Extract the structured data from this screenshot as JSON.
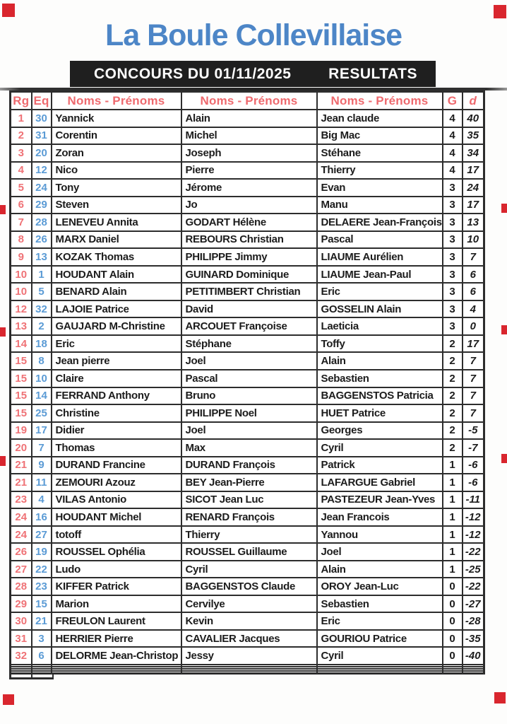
{
  "document": {
    "title": "La Boule Collevillaise",
    "banner": {
      "concours": "CONCOURS DU 01/11/2025",
      "resultats": "RESULTATS"
    }
  },
  "colors": {
    "title_blue": "#4d86c7",
    "header_pink": "#ee6a6e",
    "rank_pink": "#ef7276",
    "team_blue": "#5b9bd5",
    "banner_black": "#1f1f1f",
    "grid_dark": "#2d2d2d",
    "scan_mark_red": "#d9262e"
  },
  "table": {
    "headers": {
      "rank": "Rg",
      "team": "Eq",
      "names1": "Noms - Prénoms",
      "names2": "Noms - Prénoms",
      "names3": "Noms - Prénoms",
      "wins": "G",
      "diff": "d"
    },
    "rows": [
      {
        "rg": "1",
        "eq": "30",
        "n1": "Yannick",
        "n2": "Alain",
        "n3": "Jean claude",
        "g": "4",
        "d": "40"
      },
      {
        "rg": "2",
        "eq": "31",
        "n1": "Corentin",
        "n2": "Michel",
        "n3": "Big Mac",
        "g": "4",
        "d": "35"
      },
      {
        "rg": "3",
        "eq": "20",
        "n1": "Zoran",
        "n2": "Joseph",
        "n3": "Stéhane",
        "g": "4",
        "d": "34"
      },
      {
        "rg": "4",
        "eq": "12",
        "n1": "Nico",
        "n2": "Pierre",
        "n3": "Thierry",
        "g": "4",
        "d": "17"
      },
      {
        "rg": "5",
        "eq": "24",
        "n1": "Tony",
        "n2": "Jérome",
        "n3": "Evan",
        "g": "3",
        "d": "24"
      },
      {
        "rg": "6",
        "eq": "29",
        "n1": "Steven",
        "n2": "Jo",
        "n3": "Manu",
        "g": "3",
        "d": "17"
      },
      {
        "rg": "7",
        "eq": "28",
        "n1": "LENEVEU Annita",
        "n2": "GODART Hélène",
        "n3": "DELAERE Jean-François",
        "g": "3",
        "d": "13"
      },
      {
        "rg": "8",
        "eq": "26",
        "n1": "MARX Daniel",
        "n2": "REBOURS Christian",
        "n3": "Pascal",
        "g": "3",
        "d": "10"
      },
      {
        "rg": "9",
        "eq": "13",
        "n1": "KOZAK Thomas",
        "n2": "PHILIPPE Jimmy",
        "n3": "LIAUME Aurélien",
        "g": "3",
        "d": "7"
      },
      {
        "rg": "10",
        "eq": "1",
        "n1": "HOUDANT Alain",
        "n2": "GUINARD Dominique",
        "n3": "LIAUME Jean-Paul",
        "g": "3",
        "d": "6"
      },
      {
        "rg": "10",
        "eq": "5",
        "n1": "BENARD Alain",
        "n2": "PETITIMBERT Christian",
        "n3": "Eric",
        "g": "3",
        "d": "6"
      },
      {
        "rg": "12",
        "eq": "32",
        "n1": "LAJOIE Patrice",
        "n2": "David",
        "n3": "GOSSELIN Alain",
        "g": "3",
        "d": "4"
      },
      {
        "rg": "13",
        "eq": "2",
        "n1": "GAUJARD M-Christine",
        "n2": "ARCOUET Françoise",
        "n3": "Laeticia",
        "g": "3",
        "d": "0"
      },
      {
        "rg": "14",
        "eq": "18",
        "n1": "Eric",
        "n2": "Stéphane",
        "n3": "Toffy",
        "g": "2",
        "d": "17"
      },
      {
        "rg": "15",
        "eq": "8",
        "n1": "Jean pierre",
        "n2": "Joel",
        "n3": "Alain",
        "g": "2",
        "d": "7"
      },
      {
        "rg": "15",
        "eq": "10",
        "n1": "Claire",
        "n2": "Pascal",
        "n3": "Sebastien",
        "g": "2",
        "d": "7"
      },
      {
        "rg": "15",
        "eq": "14",
        "n1": "FERRAND Anthony",
        "n2": "Bruno",
        "n3": "BAGGENSTOS Patricia",
        "g": "2",
        "d": "7"
      },
      {
        "rg": "15",
        "eq": "25",
        "n1": "Christine",
        "n2": "PHILIPPE Noel",
        "n3": "HUET Patrice",
        "g": "2",
        "d": "7"
      },
      {
        "rg": "19",
        "eq": "17",
        "n1": "Didier",
        "n2": "Joel",
        "n3": "Georges",
        "g": "2",
        "d": "-5"
      },
      {
        "rg": "20",
        "eq": "7",
        "n1": "Thomas",
        "n2": "Max",
        "n3": "Cyril",
        "g": "2",
        "d": "-7"
      },
      {
        "rg": "21",
        "eq": "9",
        "n1": "DURAND Francine",
        "n2": "DURAND François",
        "n3": "Patrick",
        "g": "1",
        "d": "-6"
      },
      {
        "rg": "21",
        "eq": "11",
        "n1": "ZEMOURI Azouz",
        "n2": "BEY Jean-Pierre",
        "n3": "LAFARGUE Gabriel",
        "g": "1",
        "d": "-6"
      },
      {
        "rg": "23",
        "eq": "4",
        "n1": "VILAS Antonio",
        "n2": "SICOT Jean Luc",
        "n3": "PASTEZEUR Jean-Yves",
        "g": "1",
        "d": "-11"
      },
      {
        "rg": "24",
        "eq": "16",
        "n1": "HOUDANT Michel",
        "n2": "RENARD François",
        "n3": "Jean Francois",
        "g": "1",
        "d": "-12"
      },
      {
        "rg": "24",
        "eq": "27",
        "n1": "totoff",
        "n2": "Thierry",
        "n3": "Yannou",
        "g": "1",
        "d": "-12"
      },
      {
        "rg": "26",
        "eq": "19",
        "n1": "ROUSSEL Ophélia",
        "n2": "ROUSSEL Guillaume",
        "n3": "Joel",
        "g": "1",
        "d": "-22"
      },
      {
        "rg": "27",
        "eq": "22",
        "n1": "Ludo",
        "n2": "Cyril",
        "n3": "Alain",
        "g": "1",
        "d": "-25"
      },
      {
        "rg": "28",
        "eq": "23",
        "n1": "KIFFER Patrick",
        "n2": "BAGGENSTOS Claude",
        "n3": "OROY Jean-Luc",
        "g": "0",
        "d": "-22"
      },
      {
        "rg": "29",
        "eq": "15",
        "n1": "Marion",
        "n2": "Cervilye",
        "n3": "Sebastien",
        "g": "0",
        "d": "-27"
      },
      {
        "rg": "30",
        "eq": "21",
        "n1": "FREULON Laurent",
        "n2": "Kevin",
        "n3": "Eric",
        "g": "0",
        "d": "-28"
      },
      {
        "rg": "31",
        "eq": "3",
        "n1": "HERRIER Pierre",
        "n2": "CAVALIER Jacques",
        "n3": "GOURIOU Patrice",
        "g": "0",
        "d": "-35"
      },
      {
        "rg": "32",
        "eq": "6",
        "n1": "DELORME Jean-Christop",
        "n2": "Jessy",
        "n3": "Cyril",
        "g": "0",
        "d": "-40"
      }
    ],
    "empty_rows": 4
  }
}
